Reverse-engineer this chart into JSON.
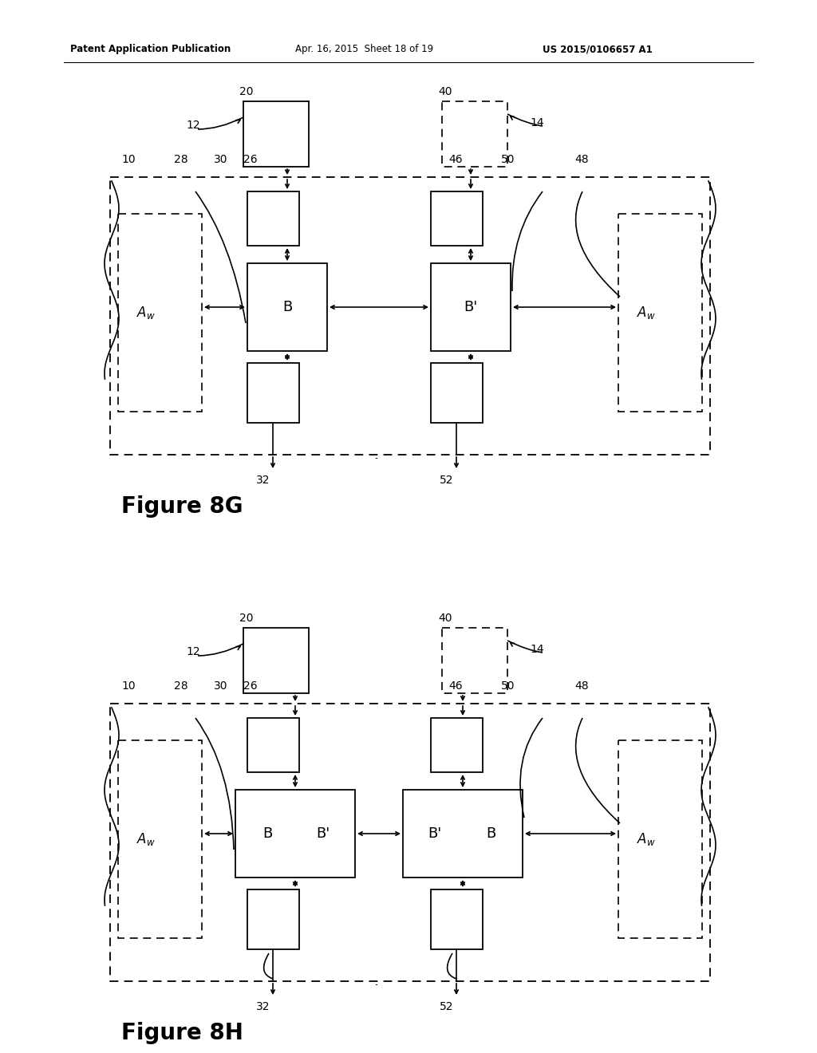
{
  "header_left": "Patent Application Publication",
  "header_mid": "Apr. 16, 2015  Sheet 18 of 19",
  "header_right": "US 2015/0106657 A1",
  "fig8g_label": "Figure 8G",
  "fig8h_label": "Figure 8H",
  "bg_color": "#ffffff"
}
